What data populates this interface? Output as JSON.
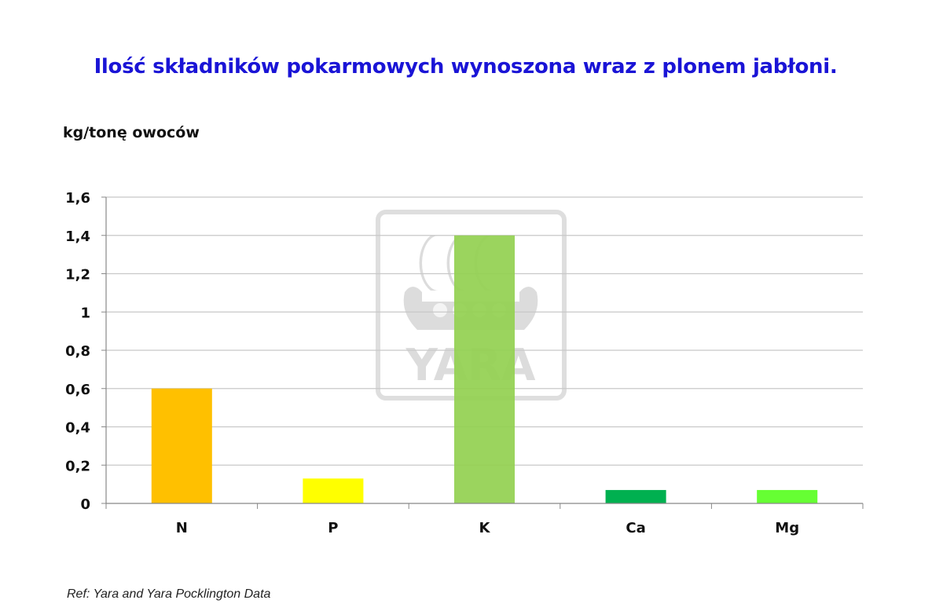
{
  "title": "Ilość składników pokarmowych wynoszona wraz z plonem jabłoni.",
  "unit_label": "kg/tonę owoców",
  "reference": "Ref:  Yara and Yara Pocklington Data",
  "watermark": {
    "text": "YARA",
    "icon": "yara-viking-ship-logo"
  },
  "colors": {
    "title": "#1a14d6",
    "grid": "#c8c8c8",
    "N": "#ffc000",
    "P": "#ffff00",
    "K": "#92d050",
    "Ca": "#00b050",
    "Mg": "#66ff33"
  },
  "chart_data": {
    "type": "bar",
    "title": "Ilość składników pokarmowych wynoszona wraz z plonem jabłoni.",
    "ylabel": "kg/tonę owoców",
    "xlabel": "",
    "categories": [
      "N",
      "P",
      "K",
      "Ca",
      "Mg"
    ],
    "values": [
      0.6,
      0.13,
      1.4,
      0.07,
      0.07
    ],
    "bar_colors": [
      "#ffc000",
      "#ffff00",
      "#92d050",
      "#00b050",
      "#66ff33"
    ],
    "ylim": [
      0,
      1.6
    ],
    "yticks": [
      0,
      0.2,
      0.4,
      0.6,
      0.8,
      1,
      1.2,
      1.4,
      1.6
    ],
    "ytick_labels": [
      "0",
      "0,2",
      "0,4",
      "0,6",
      "0,8",
      "1",
      "1,2",
      "1,4",
      "1,6"
    ],
    "grid": true,
    "legend": "none"
  }
}
